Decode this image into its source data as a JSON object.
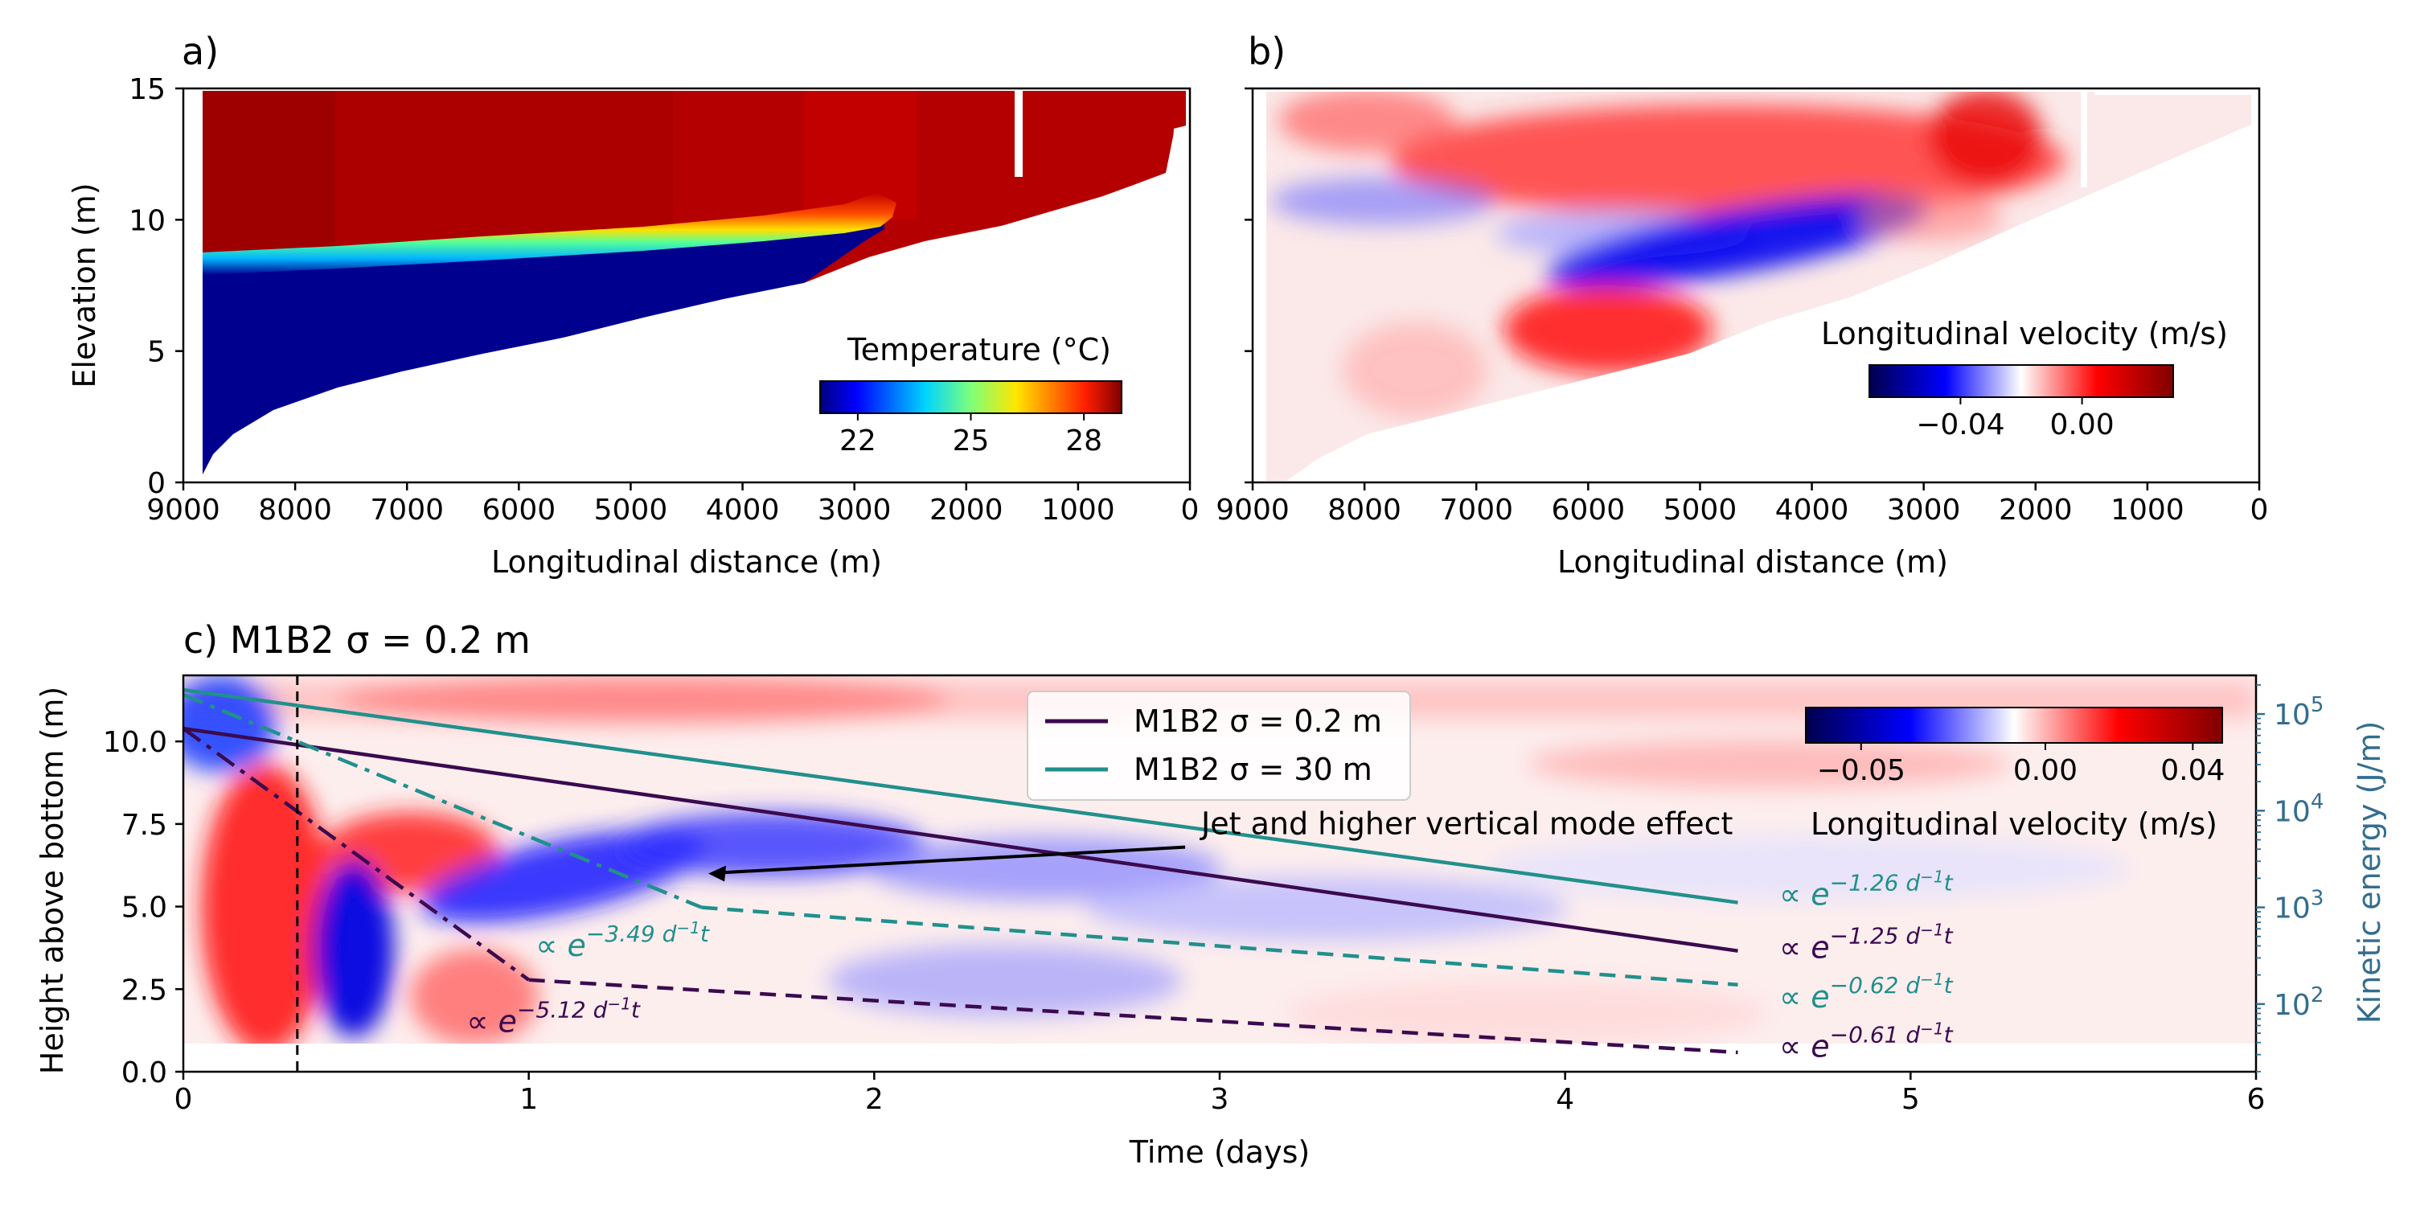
{
  "chart_data": [
    {
      "panel": "a)",
      "type": "heatmap",
      "xlabel": "Longitudinal distance (m)",
      "ylabel": "Elevation (m)",
      "xlim": [
        9000,
        0
      ],
      "ylim": [
        0,
        15
      ],
      "xticks": [
        "9000",
        "8000",
        "7000",
        "6000",
        "5000",
        "4000",
        "3000",
        "2000",
        "1000",
        "0"
      ],
      "yticks": [
        "0",
        "5",
        "10",
        "15"
      ],
      "thermocline_elevation": [
        {
          "x": 8800,
          "y": 8.5
        },
        {
          "x": 8000,
          "y": 8.7
        },
        {
          "x": 7000,
          "y": 9.0
        },
        {
          "x": 6000,
          "y": 9.3
        },
        {
          "x": 5000,
          "y": 9.7
        },
        {
          "x": 4000,
          "y": 10.1
        },
        {
          "x": 3000,
          "y": 10.7
        }
      ],
      "colorbar": {
        "label": "Temperature (°C)",
        "ticks": [
          "22",
          "25",
          "28"
        ],
        "range": [
          21,
          29
        ],
        "colormap": "jet"
      }
    },
    {
      "panel": "b)",
      "type": "heatmap",
      "xlabel": "Longitudinal distance (m)",
      "xlim": [
        9000,
        0
      ],
      "ylim": [
        0,
        15
      ],
      "xticks": [
        "9000",
        "8000",
        "7000",
        "6000",
        "5000",
        "4000",
        "3000",
        "2000",
        "1000",
        "0"
      ],
      "colorbar": {
        "label": "Longitudinal velocity (m/s)",
        "ticks": [
          "−0.04",
          "0.00"
        ],
        "range": [
          -0.07,
          0.03
        ],
        "colormap": "seismic"
      }
    },
    {
      "panel": "c)",
      "type": "line",
      "title": "c) M1B2 σ = 0.2 m",
      "xlabel": "Time (days)",
      "ylabel": "Height above bottom (m)",
      "ylabel_right": "Kinetic energy (J/m)",
      "xlim": [
        0,
        6
      ],
      "ylim": [
        0,
        12
      ],
      "xticks": [
        "0",
        "1",
        "2",
        "3",
        "4",
        "5",
        "6"
      ],
      "yticks": [
        "0.0",
        "2.5",
        "5.0",
        "7.5",
        "10.0"
      ],
      "y2_log_range": [
        1.3,
        5.4
      ],
      "y2_ticks": [
        {
          "exp": 2,
          "label": "10"
        },
        {
          "exp": 3,
          "label": "10"
        },
        {
          "exp": 4,
          "label": "10"
        },
        {
          "exp": 5,
          "label": "10"
        }
      ],
      "vline_x": 0.33,
      "series": [
        {
          "name": "M1B2 σ = 0.2 m",
          "color": "#3b0a4f",
          "style": "solid",
          "x": [
            0,
            4.5
          ],
          "log10_ke": [
            4.85,
            2.55
          ]
        },
        {
          "name": "M1B2 σ = 30 m",
          "color": "#21908c",
          "style": "solid",
          "x": [
            0,
            4.5
          ],
          "log10_ke": [
            5.25,
            3.05
          ]
        },
        {
          "color": "#3b0a4f",
          "style": "dashdot",
          "x": [
            0,
            1.0
          ],
          "log10_ke": [
            4.85,
            2.25
          ]
        },
        {
          "color": "#21908c",
          "style": "dashdot",
          "x": [
            0,
            1.5
          ],
          "log10_ke": [
            5.2,
            3.0
          ]
        },
        {
          "color": "#3b0a4f",
          "style": "dashed",
          "x": [
            1.0,
            4.5
          ],
          "log10_ke": [
            2.25,
            1.5
          ]
        },
        {
          "color": "#21908c",
          "style": "dashed",
          "x": [
            1.5,
            4.5
          ],
          "log10_ke": [
            3.0,
            2.2
          ]
        }
      ],
      "annotations": [
        {
          "text": "∝ e^{−5.12 d^{−1}t}",
          "base": "∝ e",
          "exp": "−5.12 d",
          "exp2": "−1",
          "exp3": "t",
          "color": "#3b0a4f",
          "x": 0.82,
          "y": 1.2
        },
        {
          "text": "∝ e^{−3.49 d^{−1}t}",
          "base": "∝ e",
          "exp": "−3.49 d",
          "exp2": "−1",
          "exp3": "t",
          "color": "#21908c",
          "x": 1.02,
          "y": 3.5
        },
        {
          "text": "∝ e^{−1.26 d^{−1}t}",
          "base": "∝ e",
          "exp": "−1.26 d",
          "exp2": "−1",
          "exp3": "t",
          "color": "#21908c",
          "x": 4.62,
          "y": 5.05
        },
        {
          "text": "∝ e^{−1.25 d^{−1}t}",
          "base": "∝ e",
          "exp": "−1.25 d",
          "exp2": "−1",
          "exp3": "t",
          "color": "#3b0a4f",
          "x": 4.62,
          "y": 3.45
        },
        {
          "text": "∝ e^{−0.62 d^{−1}t}",
          "base": "∝ e",
          "exp": "−0.62 d",
          "exp2": "−1",
          "exp3": "t",
          "color": "#21908c",
          "x": 4.62,
          "y": 1.95
        },
        {
          "text": "∝ e^{−0.61 d^{−1}t}",
          "base": "∝ e",
          "exp": "−0.61 d",
          "exp2": "−1",
          "exp3": "t",
          "color": "#3b0a4f",
          "x": 4.62,
          "y": 0.45
        }
      ],
      "arrow": {
        "text": "Jet and higher vertical mode effect",
        "from": [
          2.9,
          6.8
        ],
        "to": [
          1.52,
          6.0
        ]
      },
      "colorbar": {
        "label": "Longitudinal velocity (m/s)",
        "ticks": [
          "−0.05",
          "0.00",
          "0.04"
        ],
        "range": [
          -0.065,
          0.048
        ],
        "colormap": "seismic"
      }
    }
  ]
}
